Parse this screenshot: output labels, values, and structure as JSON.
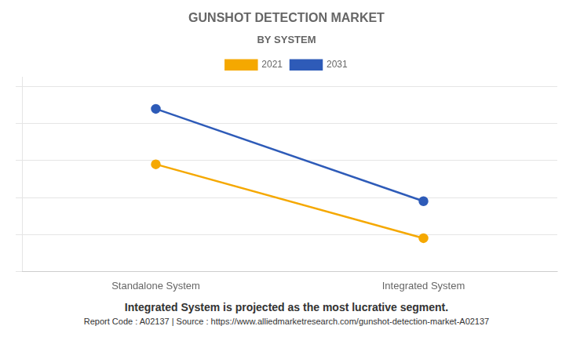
{
  "chart_data": {
    "type": "line",
    "title": "GUNSHOT DETECTION MARKET",
    "subtitle": "BY SYSTEM",
    "categories": [
      "Standalone System",
      "Integrated System"
    ],
    "series": [
      {
        "name": "2021",
        "color": "#F5A800",
        "values": [
          0.58,
          0.18
        ]
      },
      {
        "name": "2031",
        "color": "#2E5BB8",
        "values": [
          0.88,
          0.38
        ]
      }
    ],
    "marker": "circle",
    "ylim": [
      0,
      1.05
    ],
    "yticks": [
      0,
      0.2,
      0.4,
      0.6,
      0.8,
      1.0
    ],
    "grid": true,
    "tick_labels": "x",
    "legend": "top",
    "annotations": [
      "Integrated System is projected as the most lucrative segment.",
      "Report Code : A02137  |  Source : https://www.alliedmarketresearch.com/gunshot-detection-market-A02137"
    ]
  }
}
